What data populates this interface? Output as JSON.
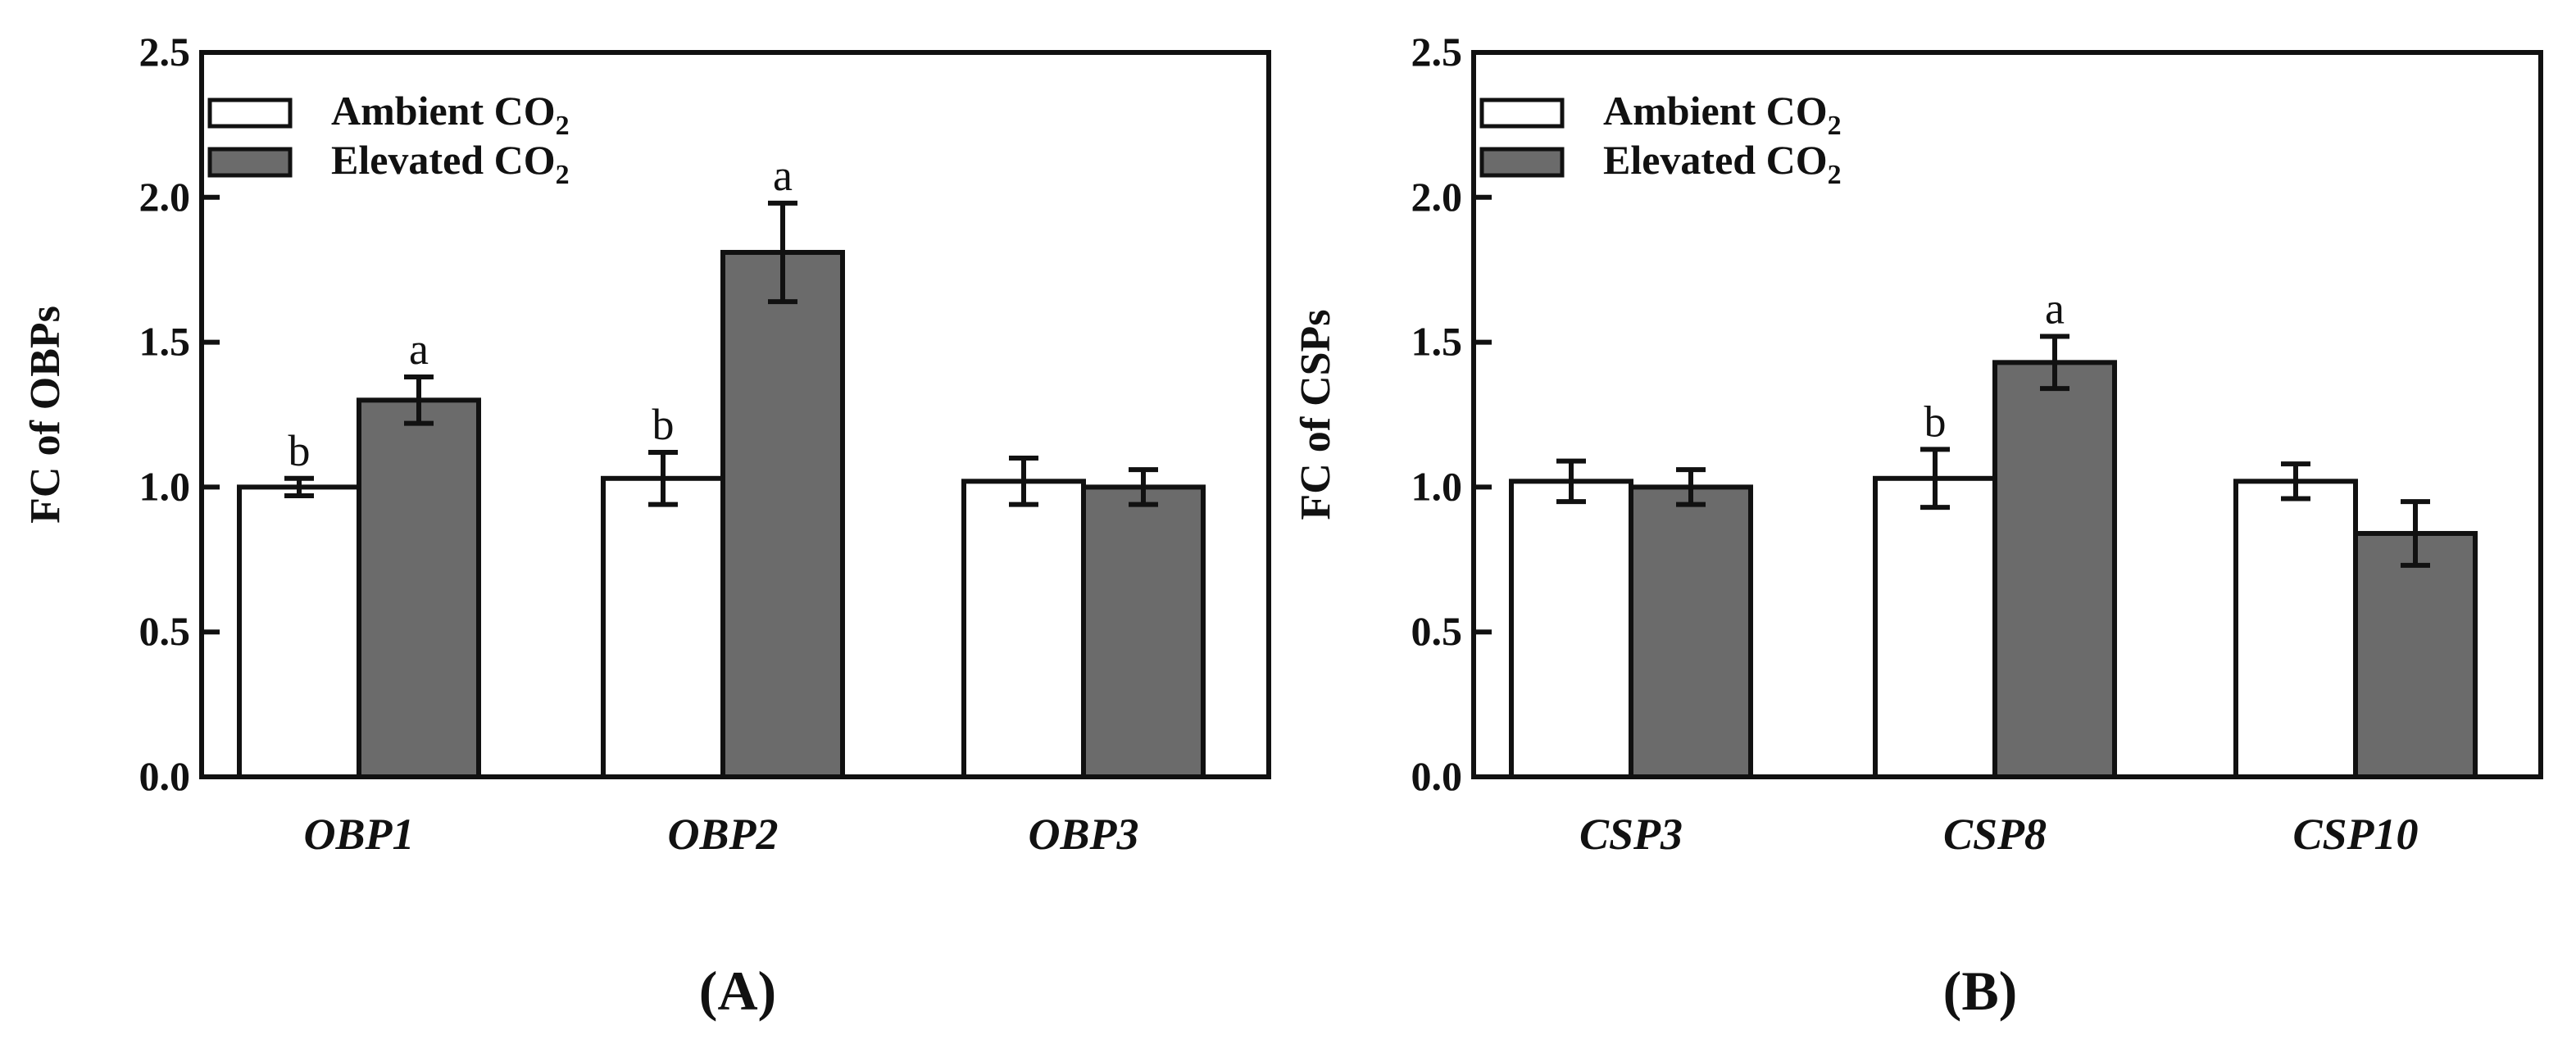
{
  "figure": {
    "colors": {
      "ambient": "#ffffff",
      "elevated": "#6b6b6b",
      "ink": "#111111"
    }
  },
  "chart_data": [
    {
      "type": "bar",
      "panel_label": "(A)",
      "ylabel": "FC of OBPs",
      "ylim": [
        0,
        2.5
      ],
      "yticks": [
        "0.0",
        "0.5",
        "1.0",
        "1.5",
        "2.0",
        "2.5"
      ],
      "categories": [
        "OBP1",
        "OBP2",
        "OBP3"
      ],
      "series": [
        {
          "name": "Ambient CO",
          "subscript": "2",
          "values": [
            1.0,
            1.03,
            1.02
          ],
          "errors": [
            0.03,
            0.09,
            0.08
          ],
          "letters": [
            "b",
            "b",
            ""
          ]
        },
        {
          "name": "Elevated CO",
          "subscript": "2",
          "values": [
            1.3,
            1.81,
            1.0
          ],
          "errors": [
            0.08,
            0.17,
            0.06
          ],
          "letters": [
            "a",
            "a",
            ""
          ]
        }
      ],
      "legend_position": "top-left"
    },
    {
      "type": "bar",
      "panel_label": "(B)",
      "ylabel": "FC of CSPs",
      "ylim": [
        0,
        2.5
      ],
      "yticks": [
        "0.0",
        "0.5",
        "1.0",
        "1.5",
        "2.0",
        "2.5"
      ],
      "categories": [
        "CSP3",
        "CSP8",
        "CSP10"
      ],
      "series": [
        {
          "name": "Ambient CO",
          "subscript": "2",
          "values": [
            1.02,
            1.03,
            1.02
          ],
          "errors": [
            0.07,
            0.1,
            0.06
          ],
          "letters": [
            "",
            "b",
            ""
          ]
        },
        {
          "name": "Elevated CO",
          "subscript": "2",
          "values": [
            1.0,
            1.43,
            0.84
          ],
          "errors": [
            0.06,
            0.09,
            0.11
          ],
          "letters": [
            "",
            "a",
            ""
          ]
        }
      ],
      "legend_position": "top-left"
    }
  ]
}
